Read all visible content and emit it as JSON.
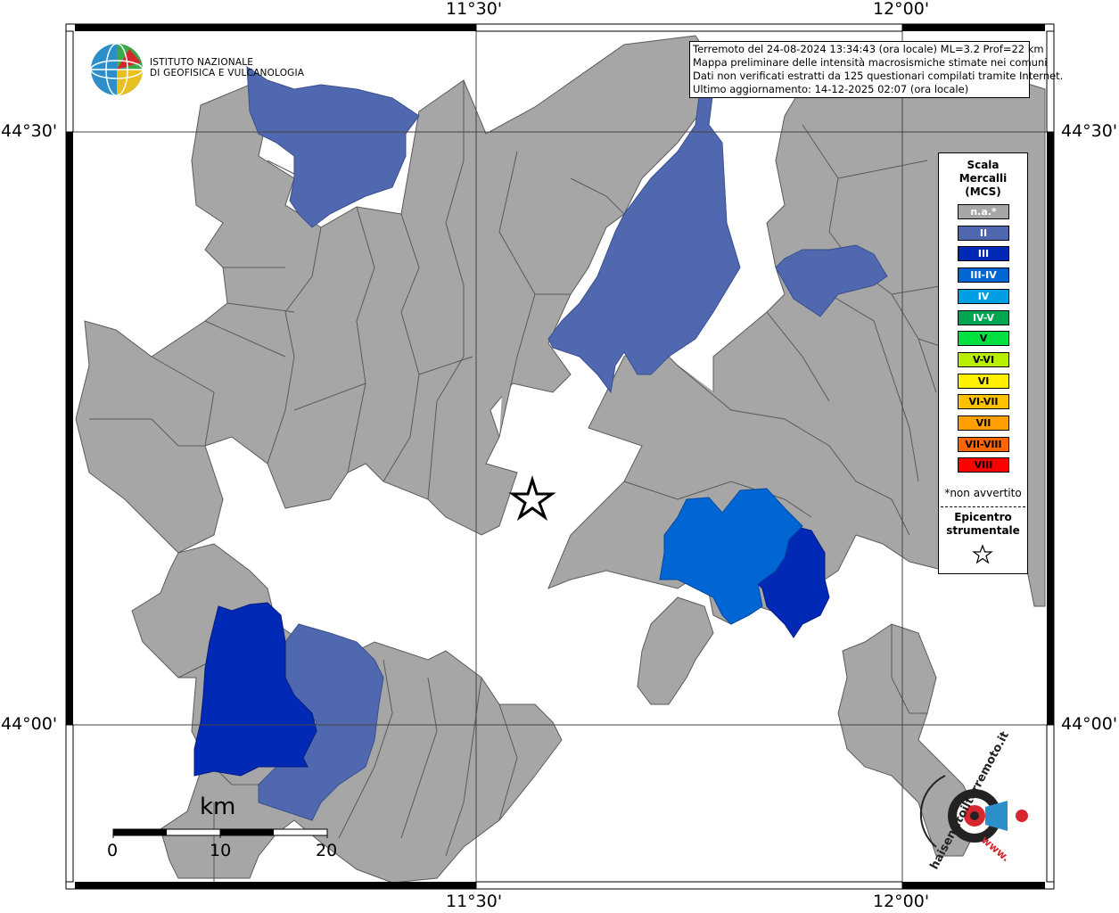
{
  "map": {
    "coords": {
      "top_lon1": "11°30'",
      "top_lon2": "12°00'",
      "bottom_lon1": "11°30'",
      "bottom_lon2": "12°00'",
      "left_lat1": "44°30'",
      "left_lat2": "44°00'",
      "right_lat1": "44°30'",
      "right_lat2": "44°00'"
    },
    "colors": {
      "na": "#a6a6a6",
      "II": "#4f68b0",
      "III": "#0029b5",
      "III-IV": "#0066d4",
      "land_border": "#5a5a5a"
    }
  },
  "logo": {
    "line1": "ISTITUTO NAZIONALE",
    "line2": "DI GEOFISICA E VULCANOLOGIA"
  },
  "info": {
    "line1": "Terremoto del 24-08-2024 13:34:43 (ora locale) ML=3.2 Prof=22 km",
    "line2": "Mappa preliminare delle intensità macrosismiche stimate nei comuni",
    "line3": "Dati non verificati estratti da 125 questionari compilati tramite Internet.",
    "line4": "Ultimo aggiornamento: 14-12-2025 02:07 (ora locale)"
  },
  "legend": {
    "title1": "Scala",
    "title2": "Mercalli",
    "title3": "(MCS)",
    "items": [
      {
        "label": "n.a.*",
        "color": "#a6a6a6",
        "text_color": "#ffffff"
      },
      {
        "label": "II",
        "color": "#4f68b0",
        "text_color": "#ffffff"
      },
      {
        "label": "III",
        "color": "#0029b5",
        "text_color": "#ffffff"
      },
      {
        "label": "III-IV",
        "color": "#0066d4",
        "text_color": "#ffffff"
      },
      {
        "label": "IV",
        "color": "#009fe3",
        "text_color": "#ffffff"
      },
      {
        "label": "IV-V",
        "color": "#00a651",
        "text_color": "#ffffff"
      },
      {
        "label": "V",
        "color": "#00e040",
        "text_color": "#000000"
      },
      {
        "label": "V-VI",
        "color": "#b8ef00",
        "text_color": "#000000"
      },
      {
        "label": "VI",
        "color": "#ffef00",
        "text_color": "#000000"
      },
      {
        "label": "VI-VII",
        "color": "#ffc000",
        "text_color": "#000000"
      },
      {
        "label": "VII",
        "color": "#ffa000",
        "text_color": "#000000"
      },
      {
        "label": "VII-VIII",
        "color": "#ff6600",
        "text_color": "#000000"
      },
      {
        "label": "VIII",
        "color": "#ff0000",
        "text_color": "#000000"
      }
    ],
    "note": "*non avvertito",
    "epicentre1": "Epicentro",
    "epicentre2": "strumentale"
  },
  "scalebar": {
    "unit": "km",
    "label0": "0",
    "label10": "10",
    "label20": "20"
  },
  "badge": {
    "text": "haisentitoilterremoto.it",
    "www": "www."
  }
}
